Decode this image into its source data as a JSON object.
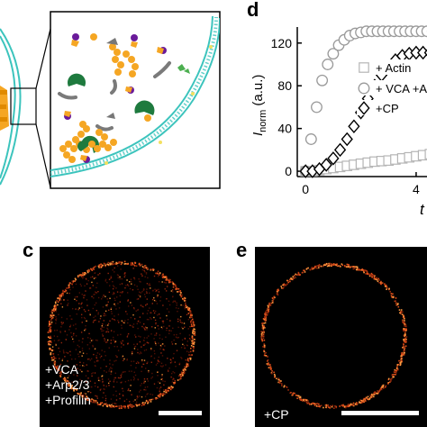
{
  "panels": {
    "d_letter": "d",
    "c_letter": "c",
    "e_letter": "e"
  },
  "chart_data": {
    "type": "scatter",
    "title": "",
    "xlabel": "t",
    "ylabel_main": "I",
    "ylabel_sub": "norm",
    "ylabel_unit": "(a.u.)",
    "xlim": [
      -0.3,
      7.0
    ],
    "ylim": [
      -5,
      135
    ],
    "xticks": [
      0,
      4
    ],
    "yticks": [
      0,
      40,
      80,
      120
    ],
    "legend_position": "right",
    "series": [
      {
        "name": "+ Actin",
        "marker": "square",
        "color": "#b5b5b5",
        "x": [
          0.0,
          0.25,
          0.5,
          0.75,
          1.0,
          1.25,
          1.5,
          1.75,
          2.0,
          2.25,
          2.5,
          2.75,
          3.0,
          3.25,
          3.5,
          3.75,
          4.0,
          4.25,
          4.5,
          4.75,
          5.0,
          5.25,
          5.5,
          5.75,
          6.0,
          6.25,
          6.5
        ],
        "y": [
          0,
          0,
          1,
          2,
          3,
          4,
          5,
          6,
          7,
          8,
          9,
          9.5,
          10,
          11,
          12,
          13,
          14,
          15,
          16,
          17,
          18,
          19,
          20,
          21,
          22,
          23,
          24
        ]
      },
      {
        "name": "+ VCA +A",
        "marker": "circle",
        "color": "#9a9a9a",
        "x": [
          0.0,
          0.2,
          0.4,
          0.6,
          0.8,
          1.0,
          1.2,
          1.4,
          1.6,
          1.8,
          2.0,
          2.2,
          2.4,
          2.6,
          2.8,
          3.0,
          3.2,
          3.4,
          3.6,
          3.8,
          4.0,
          4.2,
          4.4,
          4.6,
          4.8,
          5.0,
          5.2,
          5.4,
          5.6,
          5.8,
          6.0
        ],
        "y": [
          0,
          30,
          60,
          85,
          100,
          110,
          118,
          123,
          127,
          129,
          130,
          131,
          131,
          131,
          131,
          131,
          131,
          131,
          131,
          131,
          131,
          131,
          131,
          131,
          131,
          131,
          131,
          131,
          131,
          131,
          131
        ]
      },
      {
        "name": "+CP",
        "marker": "diamond",
        "color": "#000000",
        "x": [
          0.0,
          0.25,
          0.5,
          0.75,
          1.0,
          1.25,
          1.5,
          1.75,
          2.0,
          2.25,
          2.5,
          2.75,
          3.0,
          3.25,
          3.5,
          3.75,
          4.0,
          4.25,
          4.5,
          4.75,
          5.0,
          5.25,
          5.5,
          5.75,
          6.0,
          6.25,
          6.5
        ],
        "y": [
          0,
          0,
          2,
          6,
          12,
          20,
          30,
          42,
          55,
          68,
          80,
          90,
          98,
          104,
          108,
          110,
          111,
          111,
          111,
          111,
          111,
          111,
          111,
          111,
          111,
          111,
          111
        ]
      }
    ]
  },
  "micrographs": {
    "c_labels": [
      "+VCA",
      "+Arp2/3",
      "+Profilin"
    ],
    "e_labels": [
      "+CP"
    ]
  },
  "colors": {
    "membrane": "#3cc4bd",
    "arp_green": "#1e7a3e",
    "actin_orange": "#f5a623",
    "purple": "#6a1b9a",
    "gray_cp": "#7a7a7a"
  }
}
